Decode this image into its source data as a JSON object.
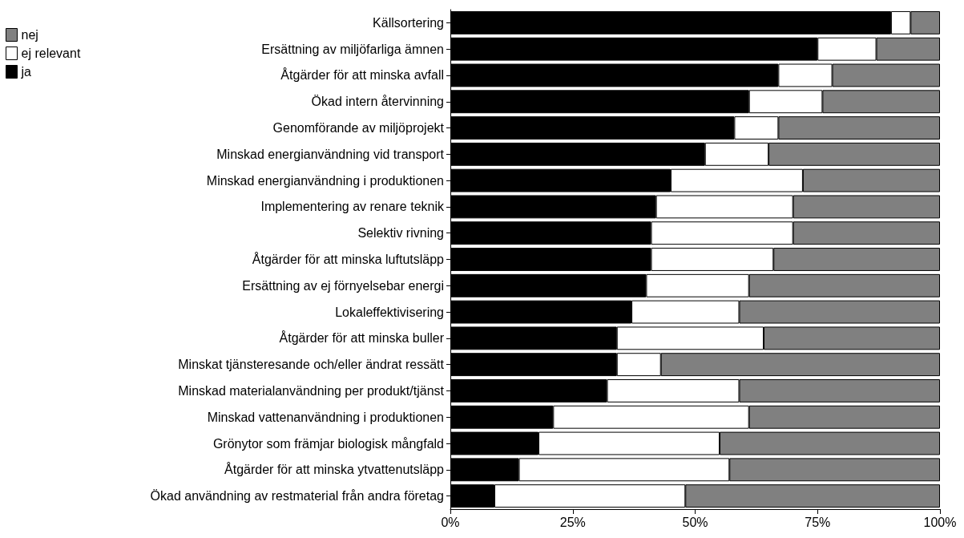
{
  "chart_data": {
    "type": "bar",
    "orientation": "horizontal",
    "stacked": true,
    "legend": "top left",
    "grid": false,
    "categories": [
      "Källsortering",
      "Ersättning av miljöfarliga ämnen",
      "Åtgärder för att minska avfall",
      "Ökad intern återvinning",
      "Genomförande av miljöprojekt",
      "Minskad energianvändning vid transport",
      "Minskad energianvändning i produktionen",
      "Implementering av renare teknik",
      "Selektiv rivning",
      "Åtgärder för att minska luftutsläpp",
      "Ersättning av ej förnyelsebar energi",
      "Lokaleffektivisering",
      "Åtgärder för att minska buller",
      "Minskat tjänsteresande och/eller ändrat ressätt",
      "Minskad materialanvändning per produkt/tjänst",
      "Minskad vattenanvändning i produktionen",
      "Grönytor som främjar biologisk mångfald",
      "Åtgärder för att minska ytvattenutsläpp",
      "Ökad användning av restmaterial från andra företag"
    ],
    "series": [
      {
        "name": "ja",
        "color": "#000000",
        "values": [
          90,
          75,
          67,
          61,
          58,
          52,
          45,
          42,
          41,
          41,
          40,
          37,
          34,
          34,
          32,
          21,
          18,
          14,
          9
        ]
      },
      {
        "name": "ej relevant",
        "color": "#ffffff",
        "values": [
          4,
          12,
          11,
          15,
          9,
          13,
          27,
          28,
          29,
          25,
          21,
          22,
          30,
          9,
          27,
          40,
          37,
          43,
          39
        ]
      },
      {
        "name": "nej",
        "color": "#808080",
        "values": [
          6,
          13,
          22,
          24,
          33,
          35,
          28,
          30,
          30,
          34,
          39,
          41,
          36,
          57,
          41,
          39,
          45,
          43,
          52
        ]
      }
    ],
    "xlim": [
      0,
      100
    ],
    "xticks": [
      {
        "value": 0,
        "label": "0%"
      },
      {
        "value": 25,
        "label": "25%"
      },
      {
        "value": 50,
        "label": "50%"
      },
      {
        "value": 75,
        "label": "75%"
      },
      {
        "value": 100,
        "label": "100%"
      }
    ]
  }
}
